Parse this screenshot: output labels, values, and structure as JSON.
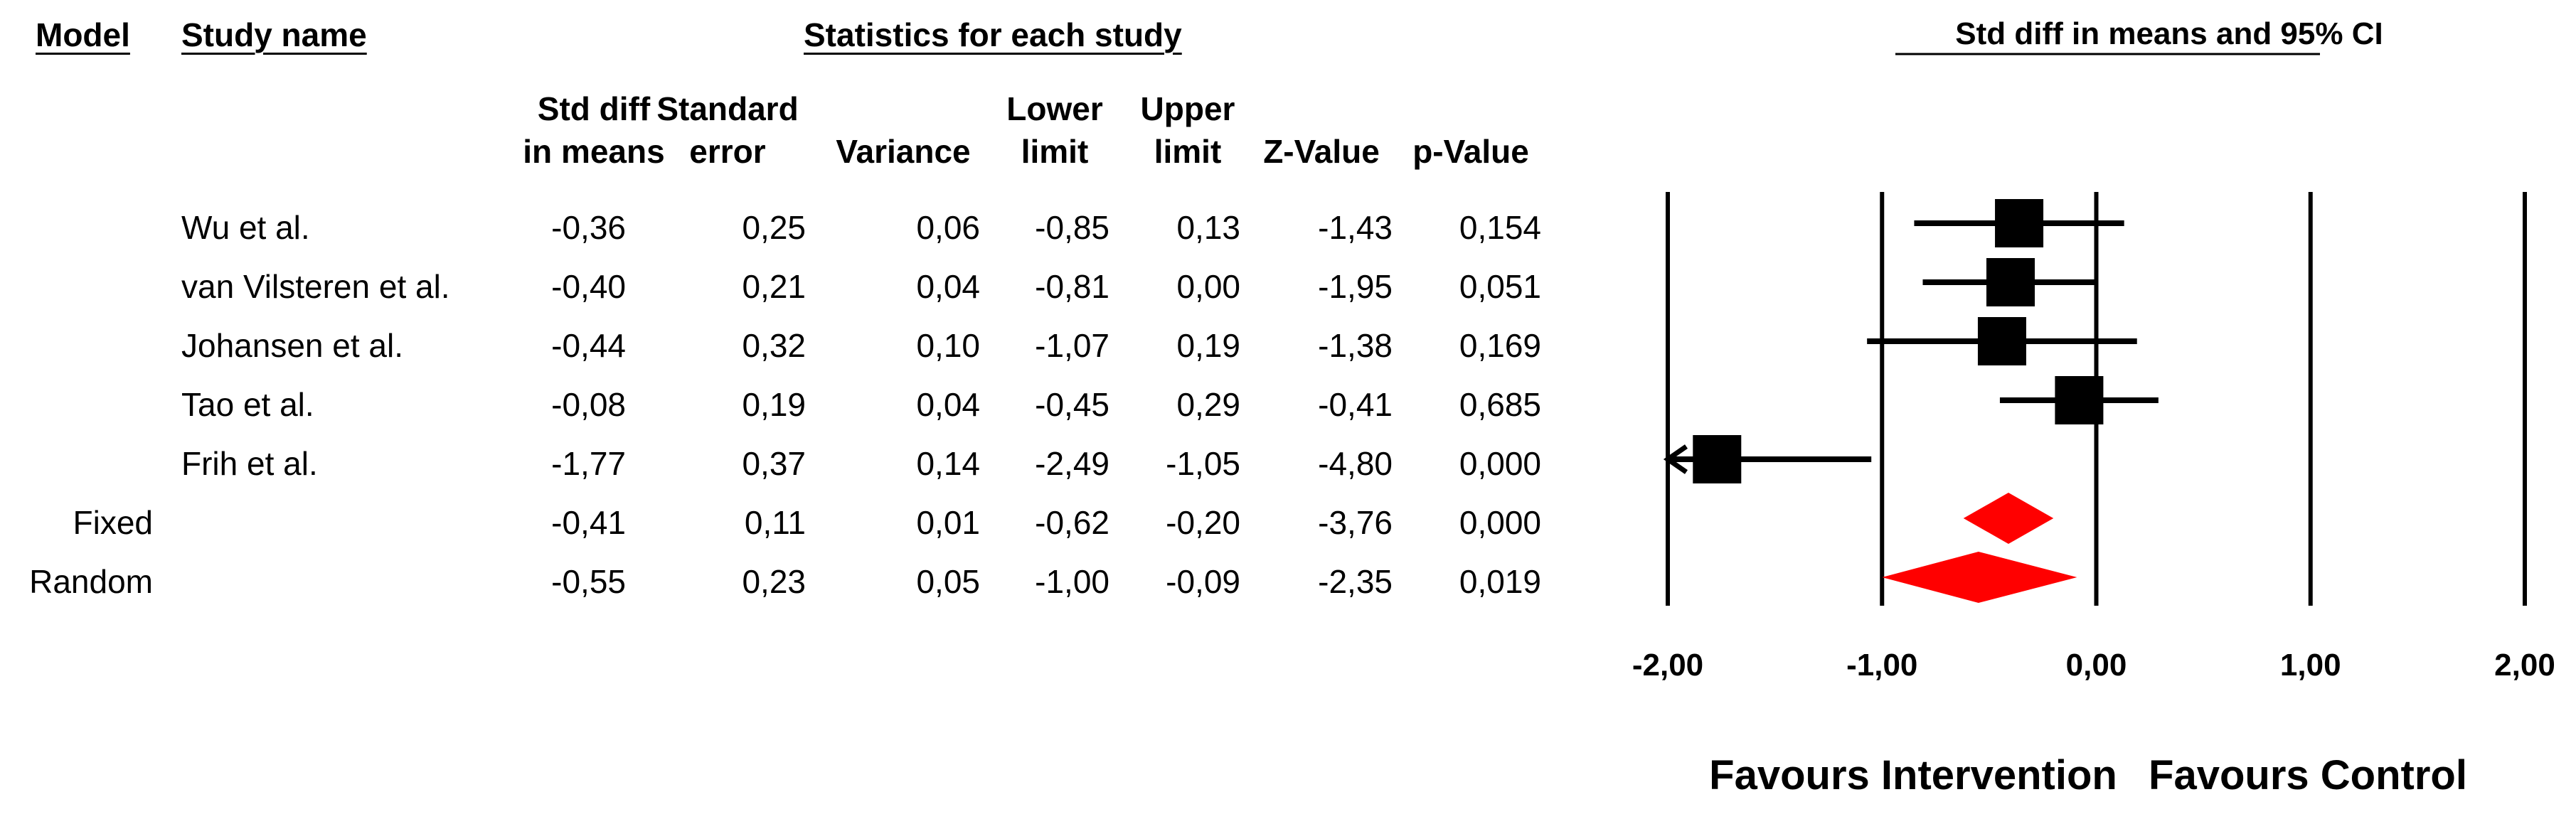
{
  "headers": {
    "model": "Model",
    "study_name": "Study name",
    "statistics": "Statistics for each study",
    "plot_title": "Std diff in means and 95% CI"
  },
  "columns": [
    {
      "line1": "Std diff",
      "line2": "in means"
    },
    {
      "line1": "Standard",
      "line2": "error"
    },
    {
      "line1": "",
      "line2": "Variance"
    },
    {
      "line1": "Lower",
      "line2": "limit"
    },
    {
      "line1": "Upper",
      "line2": "limit"
    },
    {
      "line1": "",
      "line2": "Z-Value"
    },
    {
      "line1": "",
      "line2": "p-Value"
    }
  ],
  "rows": [
    {
      "model": "",
      "study": "Wu et al.",
      "values": [
        "-0,36",
        "0,25",
        "0,06",
        "-0,85",
        "0,13",
        "-1,43",
        "0,154"
      ]
    },
    {
      "model": "",
      "study": "van Vilsteren et al.",
      "values": [
        "-0,40",
        "0,21",
        "0,04",
        "-0,81",
        "0,00",
        "-1,95",
        "0,051"
      ]
    },
    {
      "model": "",
      "study": "Johansen et al.",
      "values": [
        "-0,44",
        "0,32",
        "0,10",
        "-1,07",
        "0,19",
        "-1,38",
        "0,169"
      ]
    },
    {
      "model": "",
      "study": "Tao et al.",
      "values": [
        "-0,08",
        "0,19",
        "0,04",
        "-0,45",
        "0,29",
        "-0,41",
        "0,685"
      ]
    },
    {
      "model": "",
      "study": "Frih et al.",
      "values": [
        "-1,77",
        "0,37",
        "0,14",
        "-2,49",
        "-1,05",
        "-4,80",
        "0,000"
      ]
    },
    {
      "model": "Fixed",
      "study": "",
      "values": [
        "-0,41",
        "0,11",
        "0,01",
        "-0,62",
        "-0,20",
        "-3,76",
        "0,000"
      ]
    },
    {
      "model": "Random",
      "study": "",
      "values": [
        "-0,55",
        "0,23",
        "0,05",
        "-1,00",
        "-0,09",
        "-2,35",
        "0,019"
      ]
    }
  ],
  "favours": {
    "left": "Favours Intervention",
    "right": "Favours Control"
  },
  "colors": {
    "study_marker": "#000000",
    "summary_diamond": "#ff0000",
    "axis": "#000000"
  },
  "chart_data": {
    "type": "forest",
    "title": "Std diff in means and 95% CI",
    "xlabel_left": "Favours Intervention",
    "xlabel_right": "Favours Control",
    "xlim": [
      -2,
      2
    ],
    "ticks": [
      -2,
      -1,
      0,
      1,
      2
    ],
    "tick_labels": [
      "-2,00",
      "-1,00",
      "0,00",
      "1,00",
      "2,00"
    ],
    "studies": [
      {
        "name": "Wu et al.",
        "estimate": -0.36,
        "lower": -0.85,
        "upper": 0.13
      },
      {
        "name": "van Vilsteren et al.",
        "estimate": -0.4,
        "lower": -0.81,
        "upper": 0.0
      },
      {
        "name": "Johansen et al.",
        "estimate": -0.44,
        "lower": -1.07,
        "upper": 0.19
      },
      {
        "name": "Tao et al.",
        "estimate": -0.08,
        "lower": -0.45,
        "upper": 0.29
      },
      {
        "name": "Frih et al.",
        "estimate": -1.77,
        "lower": -2.49,
        "upper": -1.05
      }
    ],
    "summaries": [
      {
        "name": "Fixed",
        "estimate": -0.41,
        "lower": -0.62,
        "upper": -0.2
      },
      {
        "name": "Random",
        "estimate": -0.55,
        "lower": -1.0,
        "upper": -0.09
      }
    ]
  }
}
